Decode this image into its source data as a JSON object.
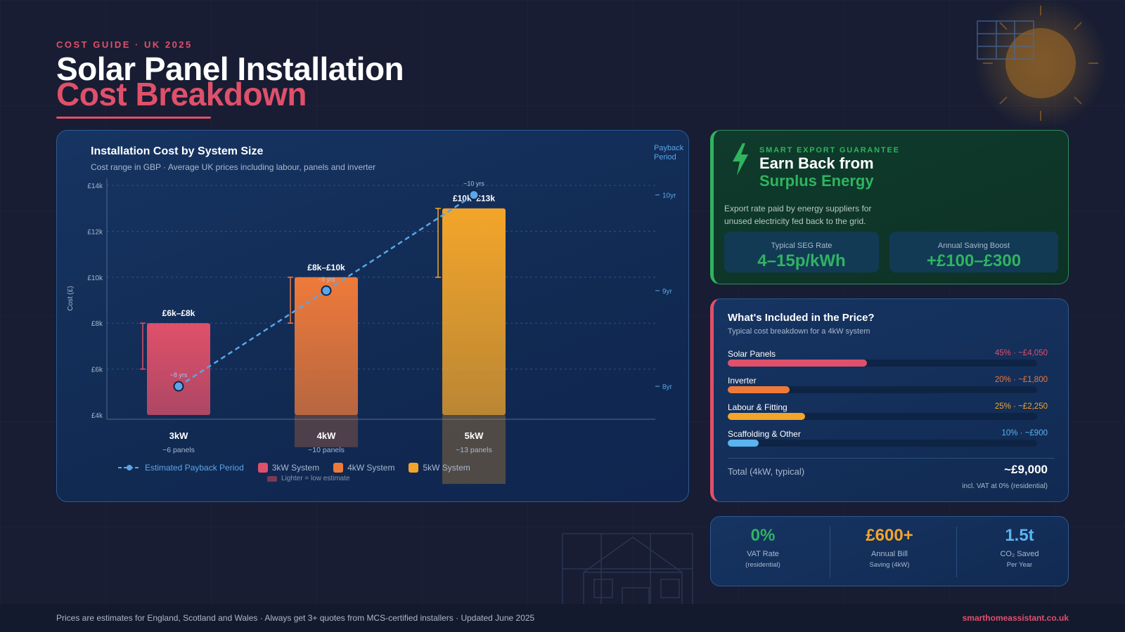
{
  "header": {
    "eyebrow": "COST GUIDE · UK 2025",
    "title_line1": "Solar Panel Installation",
    "title_line2": "Cost Breakdown",
    "accent_color": "#e0506a"
  },
  "chart_data": {
    "type": "bar",
    "title": "Installation Cost by System Size",
    "subtitle": "Cost range in GBP · Average UK prices including labour, panels and inverter",
    "ylabel": "Cost (£)",
    "ylim": [
      4000,
      14000
    ],
    "yticks": [
      "£4k",
      "£6k",
      "£8k",
      "£10k",
      "£12k",
      "£14k"
    ],
    "secondary_axis_label": "Payback Period",
    "secondary_ticks": [
      "8yr",
      "9yr",
      "10yr"
    ],
    "secondary_ylim": [
      7.7,
      10.1
    ],
    "grid": true,
    "categories": [
      "3kW",
      "4kW",
      "5kW"
    ],
    "category_subtitles": [
      "~6 panels",
      "~10 panels",
      "~13 panels"
    ],
    "bars": [
      {
        "name": "3kW System",
        "low": 6000,
        "high": 8000,
        "label": "£6k–£8k",
        "color": "#e0506a"
      },
      {
        "name": "4kW System",
        "low": 8000,
        "high": 10000,
        "label": "£8k–£10k",
        "color": "#ee7a3a"
      },
      {
        "name": "5kW System",
        "low": 10000,
        "high": 13000,
        "label": "£10k–£13k",
        "color": "#f3a52a"
      }
    ],
    "payback_series": {
      "name": "Estimated Payback Period",
      "points_years": [
        8,
        9,
        10
      ],
      "point_labels": [
        "~8 yrs",
        "~9 yrs",
        "~10 yrs"
      ],
      "color": "#5aa6e8"
    },
    "legend_note": "Lighter = low estimate",
    "legend_position": "bottom-left"
  },
  "seg": {
    "eyebrow": "SMART EXPORT GUARANTEE",
    "title_line1": "Earn Back from",
    "title_line2": "Surplus Energy",
    "description": "Export rate paid by energy suppliers for unused electricity fed back to the grid.",
    "boxes": [
      {
        "label": "Typical SEG Rate",
        "value": "4–15p/kWh"
      },
      {
        "label": "Annual Saving Boost",
        "value": "+£100–£300"
      }
    ],
    "color": "#2fb45f",
    "icon": "lightning-bolt-icon"
  },
  "included": {
    "title": "What's Included in the Price?",
    "subtitle": "Typical cost breakdown for a 4kW system",
    "rows": [
      {
        "label": "Solar Panels",
        "value": "45% · ~£4,050",
        "percent": 45,
        "color": "#e0506a"
      },
      {
        "label": "Inverter",
        "value": "20% · ~£1,800",
        "percent": 20,
        "color": "#ee7a3a"
      },
      {
        "label": "Labour & Fitting",
        "value": "25% · ~£2,250",
        "percent": 25,
        "color": "#f3a52a"
      },
      {
        "label": "Scaffolding & Other",
        "value": "10% · ~£900",
        "percent": 10,
        "color": "#5ab4f0"
      }
    ],
    "total_label": "Total (4kW, typical)",
    "total_value": "~£9,000",
    "total_note": "incl. VAT at 0% (residential)"
  },
  "stats": [
    {
      "value": "0%",
      "label": "VAT Rate",
      "sub": "(residential)",
      "color": "#2fb45f"
    },
    {
      "value": "£600+",
      "label": "Annual Bill",
      "sub": "Saving (4kW)",
      "color": "#f3a52a"
    },
    {
      "value": "1.5t",
      "label": "CO₂ Saved",
      "sub": "Per Year",
      "color": "#5ab4f0"
    }
  ],
  "footer": {
    "note": "Prices are estimates for England, Scotland and Wales · Always get 3+ quotes from MCS-certified installers · Updated June 2025",
    "site": "smarthomeassistant.co.uk"
  }
}
